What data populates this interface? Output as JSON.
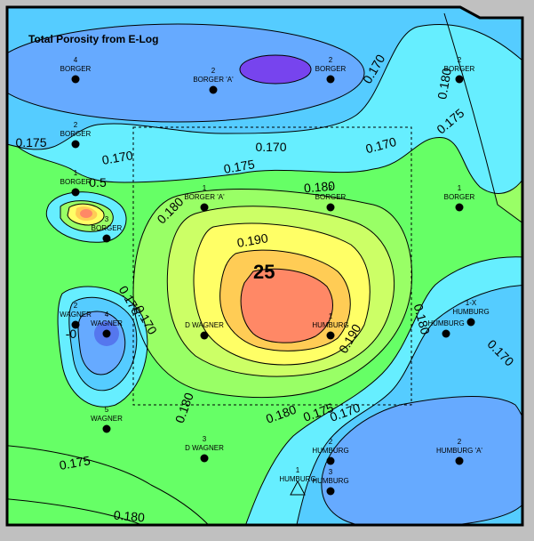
{
  "map": {
    "title": "Total Porosity from E-Log",
    "center_label": "25",
    "colors": {
      "background": "#c0c0c0",
      "c160": "#66aaff",
      "c165": "#55ccff",
      "c170": "#66eeff",
      "c175": "#66ffcc",
      "c180": "#66ff66",
      "c185": "#99ff66",
      "c190": "#ffff66",
      "c195": "#ffcc55",
      "c200": "#ff8866",
      "low1": "#5577ee",
      "low2": "#7744ee",
      "border": "#000000"
    },
    "contour_labels": [
      {
        "text": "0.170",
        "rotate": -60
      },
      {
        "text": "0.180",
        "rotate": -80
      },
      {
        "text": "0.175",
        "rotate": -40
      },
      {
        "text": "0.170",
        "rotate": -15
      },
      {
        "text": "0.170",
        "rotate": 0
      },
      {
        "text": "0.170",
        "rotate": -10
      },
      {
        "text": "0.175",
        "rotate": -10
      },
      {
        "text": "0.180",
        "rotate": -5
      },
      {
        "text": "0.175",
        "rotate": 0
      },
      {
        "text": "0.180",
        "rotate": -45
      },
      {
        "text": "0.190",
        "rotate": -10
      },
      {
        "text": "0.175",
        "rotate": 60
      },
      {
        "text": "0.170",
        "rotate": 60
      },
      {
        "text": "0.180",
        "rotate": 75
      },
      {
        "text": "0.190",
        "rotate": -60
      },
      {
        "text": "0.180",
        "rotate": -70
      },
      {
        "text": "0.170",
        "rotate": 45
      },
      {
        "text": "0.180",
        "rotate": -20
      },
      {
        "text": "0.175",
        "rotate": -20
      },
      {
        "text": "0.170",
        "rotate": -20
      },
      {
        "text": "0.175",
        "rotate": -10
      },
      {
        "text": "0.180",
        "rotate": 5
      },
      {
        "text": "0.5",
        "rotate": 0
      },
      {
        "text": "-0",
        "rotate": 0
      }
    ],
    "wells": [
      {
        "num": "4",
        "name": "BORGER"
      },
      {
        "num": "2",
        "name": "BORGER 'A'"
      },
      {
        "num": "2",
        "name": "BORGER"
      },
      {
        "num": "2",
        "name": "BORGER"
      },
      {
        "num": "2",
        "name": "BORGER"
      },
      {
        "num": "1",
        "name": "BORGER"
      },
      {
        "num": "1",
        "name": "BORGER 'A'"
      },
      {
        "num": "2",
        "name": "BORGER"
      },
      {
        "num": "1",
        "name": "BORGER"
      },
      {
        "num": "3",
        "name": "BORGER"
      },
      {
        "num": "2",
        "name": "WAGNER"
      },
      {
        "num": "4",
        "name": "WAGNER"
      },
      {
        "num": "",
        "name": "D WAGNER"
      },
      {
        "num": "1",
        "name": "HUMBURG"
      },
      {
        "num": "",
        "name": "HUMBURG"
      },
      {
        "num": "1-X",
        "name": "HUMBURG"
      },
      {
        "num": "5",
        "name": "WAGNER"
      },
      {
        "num": "3",
        "name": "D WAGNER"
      },
      {
        "num": "2",
        "name": "HUMBURG"
      },
      {
        "num": "2",
        "name": "HUMBURG 'A'"
      },
      {
        "num": "1",
        "name": "HUMBURG"
      },
      {
        "num": "3",
        "name": "HUMBURG"
      }
    ]
  }
}
